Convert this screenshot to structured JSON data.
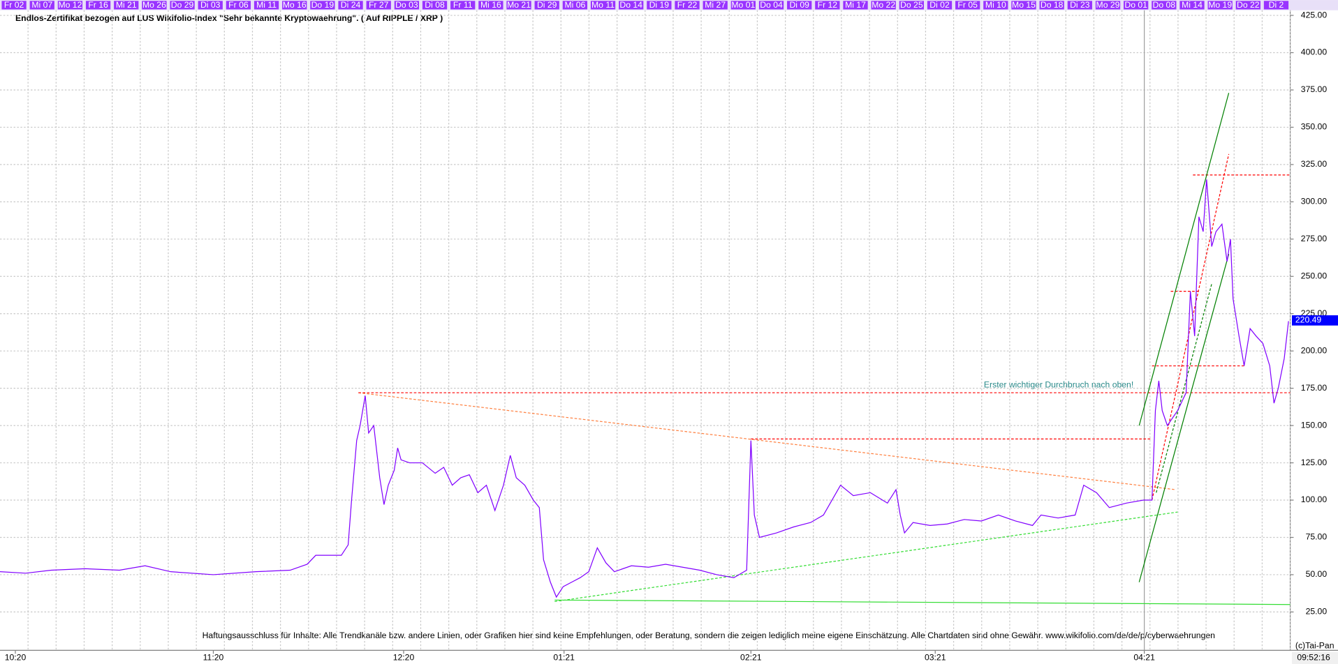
{
  "chart_data": {
    "type": "line",
    "title": "Endlos-Zertifikat bezogen auf LUS Wikifolio-Index \"Sehr bekannte Kryptowaehrung\". ( Auf RIPPLE / XRP )",
    "annotation": "Erster wichtiger Durchbruch nach oben!",
    "disclaimer": "Haftungsausschluss für Inhalte: Alle Trendkanäle bzw. andere Linien, oder Grafiken hier sind keine Empfehlungen, oder Beratung, sondern die zeigen lediglich meine eigene Einschätzung. Alle Chartdaten sind ohne Gewähr.  www.wikifolio.com/de/de/p/cyberwaehrungen",
    "copyright": "(c)Tai-Pan",
    "time": "09:52:16",
    "top_dates": [
      "Fr 02",
      "Mi 07",
      "Mo 12",
      "Fr 16",
      "Mi 21",
      "Mo 26",
      "Do 29",
      "Di 03",
      "Fr 06",
      "Mi 11",
      "Mo 16",
      "Do 19",
      "Di 24",
      "Fr 27",
      "Do 03",
      "Di 08",
      "Fr 11",
      "Mi 16",
      "Mo 21",
      "Di 29",
      "Mi 06",
      "Mo 11",
      "Do 14",
      "Di 19",
      "Fr 22",
      "Mi 27",
      "Mo 01",
      "Do 04",
      "Di 09",
      "Fr 12",
      "Mi 17",
      "Mo 22",
      "Do 25",
      "Di 02",
      "Fr 05",
      "Mi 10",
      "Mo 15",
      "Do 18",
      "Di 23",
      "Mo 29",
      "Do 01",
      "Do 08",
      "Mi 14",
      "Mo 19",
      "Do 22",
      "Di 2"
    ],
    "color": "#8000ff",
    "x": [
      0,
      30,
      60,
      100,
      140,
      170,
      200,
      250,
      300,
      340,
      360,
      370,
      400,
      408,
      412,
      418,
      422,
      428,
      432,
      438,
      445,
      450,
      455,
      462,
      466,
      470,
      480,
      495,
      510,
      520,
      530,
      540,
      550,
      560,
      570,
      580,
      590,
      598,
      605,
      615,
      625,
      632,
      637,
      645,
      652,
      660,
      670,
      680,
      690,
      700,
      710,
      720,
      740,
      760,
      780,
      800,
      820,
      840,
      860,
      875,
      880,
      884,
      890,
      910,
      930,
      950,
      965,
      975,
      985,
      1000,
      1020,
      1040,
      1050,
      1055,
      1060,
      1070,
      1090,
      1110,
      1130,
      1150,
      1170,
      1190,
      1210,
      1220,
      1240,
      1260,
      1270,
      1285,
      1300,
      1320,
      1340,
      1350,
      1354,
      1358,
      1362,
      1368,
      1380,
      1390,
      1395,
      1400,
      1405,
      1410,
      1414,
      1420,
      1425,
      1432,
      1438,
      1442,
      1445,
      1452,
      1458,
      1465,
      1472,
      1480,
      1488,
      1493,
      1498,
      1505,
      1510
    ],
    "values": [
      52,
      51,
      53,
      54,
      53,
      56,
      52,
      50,
      52,
      53,
      57,
      63,
      63,
      70,
      100,
      140,
      150,
      170,
      145,
      150,
      115,
      97,
      110,
      120,
      135,
      127,
      125,
      125,
      118,
      122,
      110,
      115,
      117,
      105,
      110,
      93,
      110,
      130,
      115,
      110,
      100,
      95,
      60,
      45,
      35,
      42,
      45,
      48,
      52,
      68,
      58,
      52,
      56,
      55,
      57,
      55,
      53,
      50,
      48,
      53,
      140,
      90,
      75,
      78,
      82,
      85,
      90,
      100,
      110,
      103,
      105,
      98,
      107,
      90,
      78,
      85,
      83,
      84,
      87,
      86,
      90,
      86,
      83,
      90,
      88,
      90,
      110,
      105,
      95,
      98,
      100,
      100,
      160,
      180,
      160,
      150,
      160,
      172,
      240,
      210,
      290,
      280,
      315,
      270,
      280,
      285,
      260,
      275,
      235,
      210,
      190,
      215,
      210,
      205,
      190,
      165,
      175,
      195,
      220
    ],
    "last_value": 220.49,
    "xlim": [
      0,
      1512
    ],
    "xticks": [
      {
        "value": 18,
        "label": "10:20"
      },
      {
        "value": 250,
        "label": "11:20"
      },
      {
        "value": 473,
        "label": "12:20"
      },
      {
        "value": 661,
        "label": "01:21"
      },
      {
        "value": 880,
        "label": "02:21"
      },
      {
        "value": 1096,
        "label": "03:21"
      },
      {
        "value": 1341,
        "label": "04:21"
      }
    ],
    "ylim": [
      25,
      425
    ],
    "yticks": [
      {
        "value": 25,
        "label": "25.00"
      },
      {
        "value": 50,
        "label": "50.00"
      },
      {
        "value": 75,
        "label": "75.00"
      },
      {
        "value": 100,
        "label": "100.00"
      },
      {
        "value": 125,
        "label": "125.00"
      },
      {
        "value": 150,
        "label": "150.00"
      },
      {
        "value": 175,
        "label": "175.00"
      },
      {
        "value": 200,
        "label": "200.00"
      },
      {
        "value": 225,
        "label": "225.00"
      },
      {
        "value": 250,
        "label": "250.00"
      },
      {
        "value": 275,
        "label": "275.00"
      },
      {
        "value": 300,
        "label": "300.00"
      },
      {
        "value": 325,
        "label": "325.00"
      },
      {
        "value": 350,
        "label": "350.00"
      },
      {
        "value": 375,
        "label": "375.00"
      },
      {
        "value": 400,
        "label": "400.00"
      },
      {
        "value": 425,
        "label": "425.00"
      }
    ],
    "grid": true,
    "trend_lines": [
      {
        "x": [
          420,
          1378
        ],
        "y": [
          172,
          107
        ],
        "color": "#ff8040",
        "dash": true
      },
      {
        "x": [
          420,
          1512
        ],
        "y": [
          172,
          172
        ],
        "color": "#ff0000",
        "dash": true
      },
      {
        "x": [
          880,
          1350
        ],
        "y": [
          141,
          141
        ],
        "color": "#ff0000",
        "dash": true
      },
      {
        "x": [
          1350,
          1460
        ],
        "y": [
          190,
          190
        ],
        "color": "#ff0000",
        "dash": true
      },
      {
        "x": [
          1398,
          1512
        ],
        "y": [
          318,
          318
        ],
        "color": "#ff0000",
        "dash": true
      },
      {
        "x": [
          1372,
          1405
        ],
        "y": [
          240,
          240
        ],
        "color": "#ff0000",
        "dash": true
      },
      {
        "x": [
          1350,
          1440
        ],
        "y": [
          100,
          332
        ],
        "color": "#ff0000",
        "dash": true
      },
      {
        "x": [
          650,
          1380
        ],
        "y": [
          32,
          92
        ],
        "color": "#33dd33",
        "dash": true
      },
      {
        "x": [
          650,
          1512
        ],
        "y": [
          33,
          30
        ],
        "color": "#33dd33",
        "dash": false
      },
      {
        "x": [
          1335,
          1440
        ],
        "y": [
          150,
          373
        ],
        "color": "#008000",
        "dash": false
      },
      {
        "x": [
          1335,
          1440
        ],
        "y": [
          45,
          265
        ],
        "color": "#008000",
        "dash": false
      },
      {
        "x": [
          1355,
          1420
        ],
        "y": [
          105,
          245
        ],
        "color": "#008000",
        "dash": true
      }
    ]
  }
}
